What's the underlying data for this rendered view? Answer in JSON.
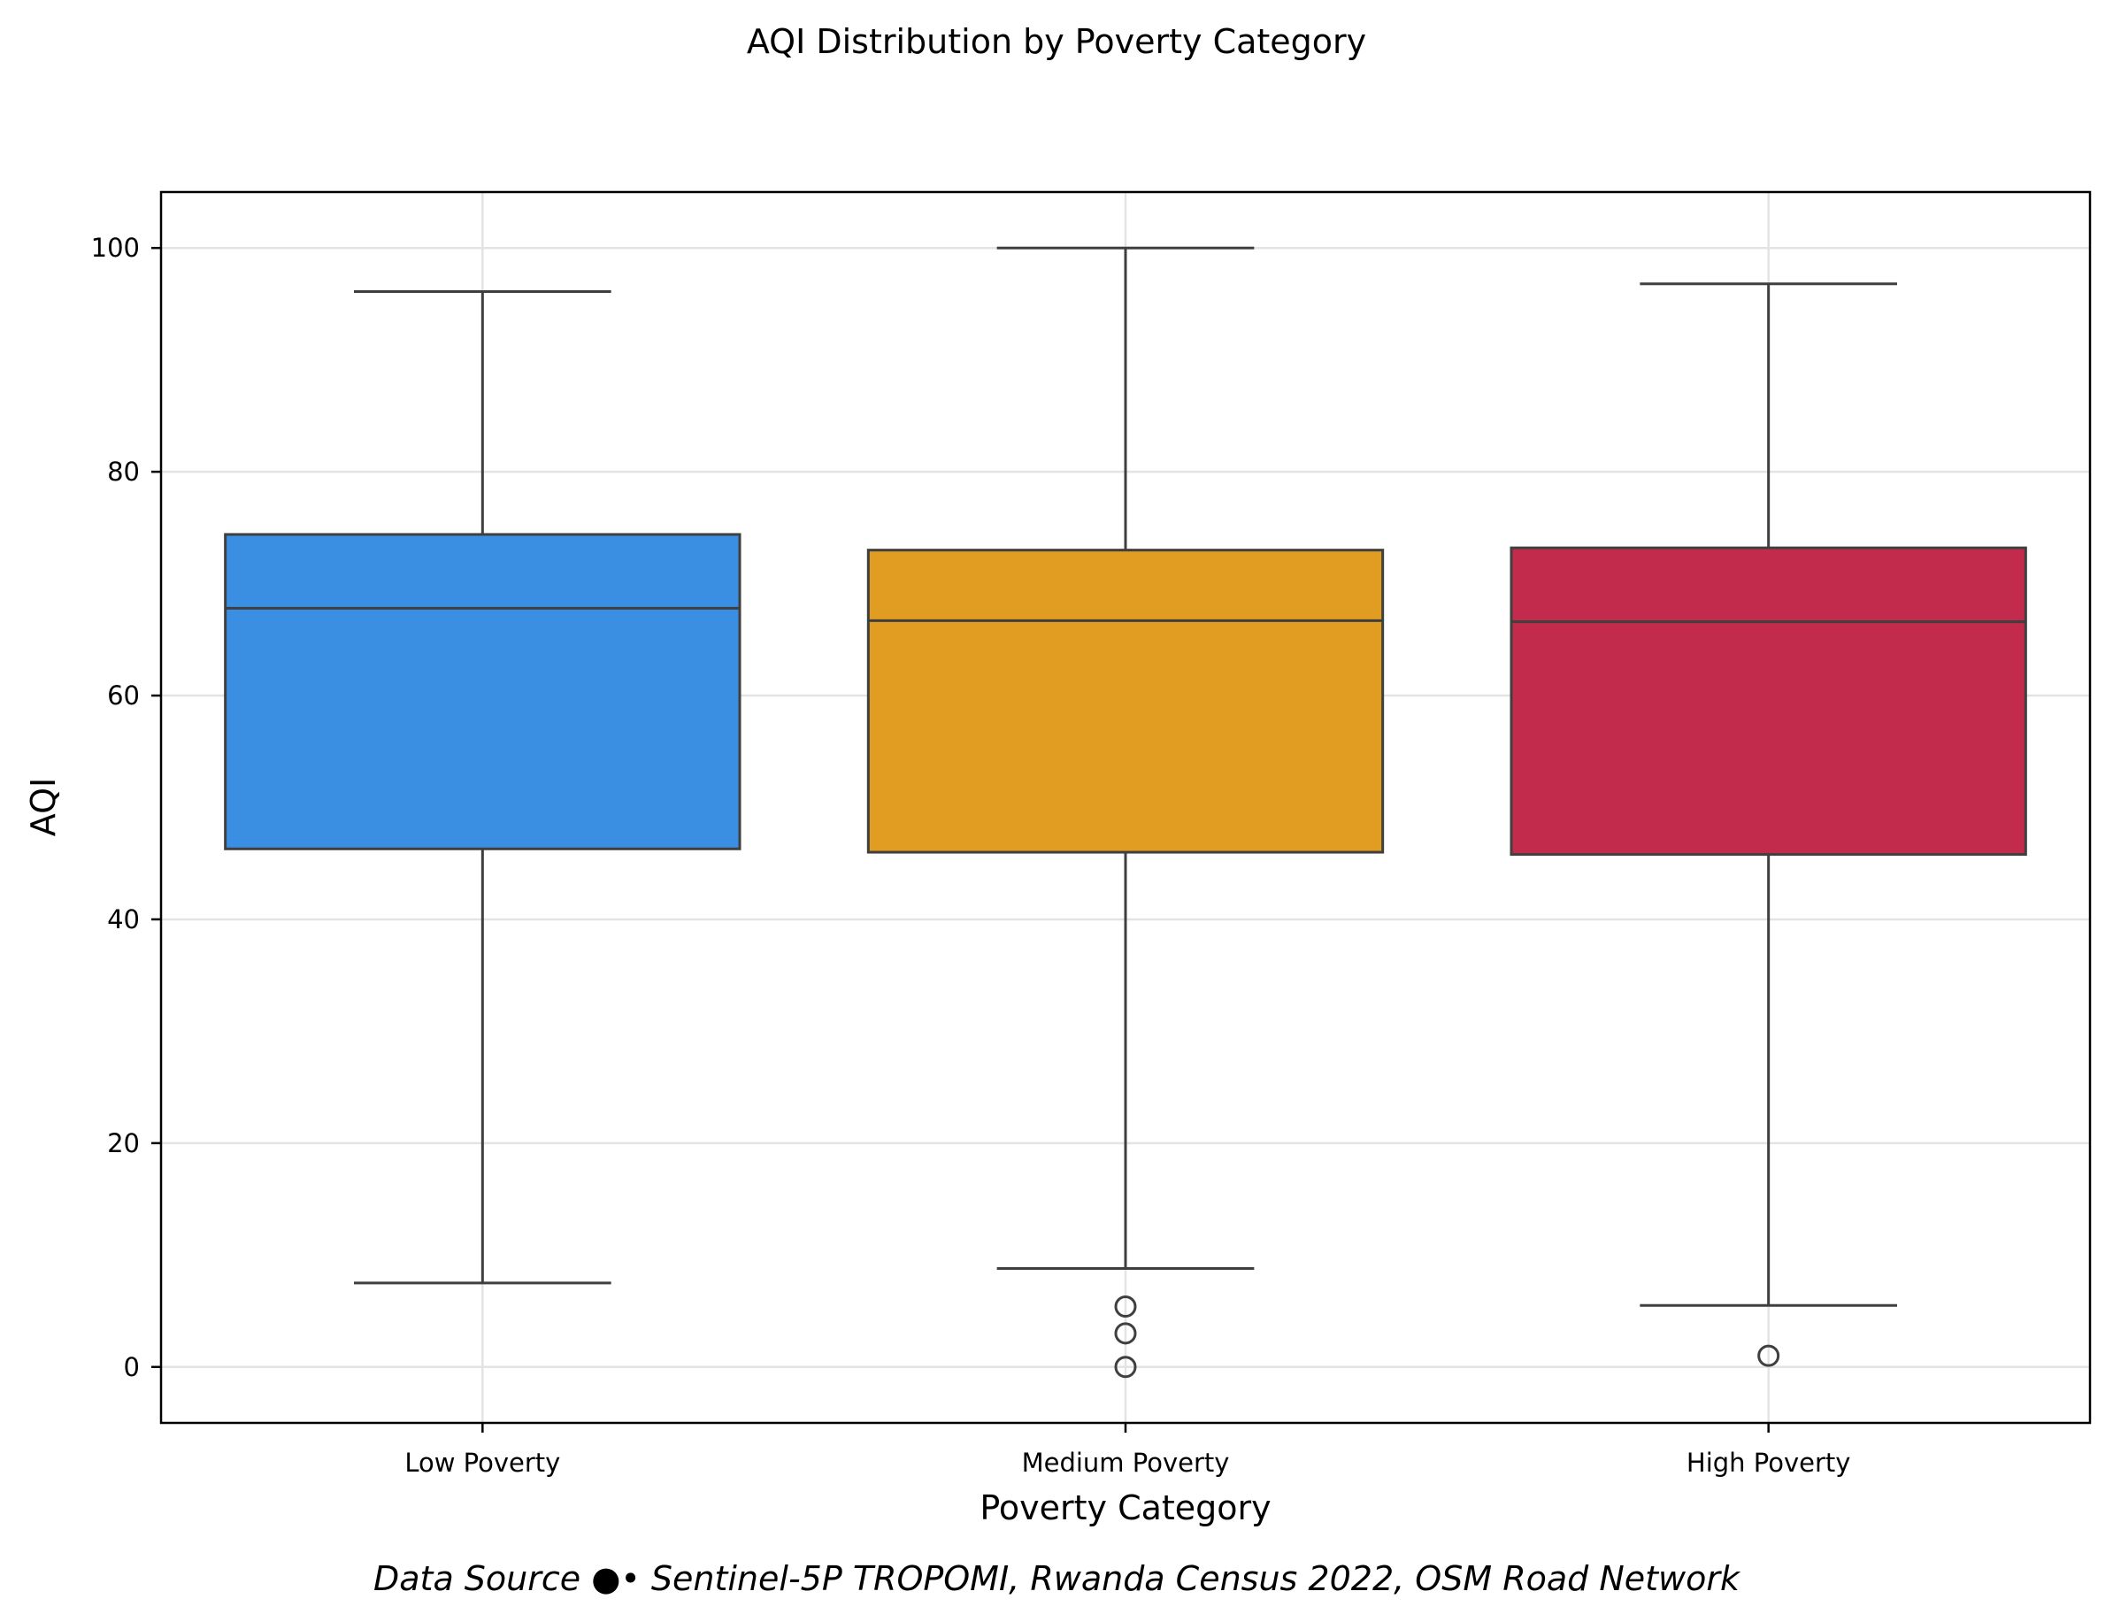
{
  "chart_data": {
    "type": "box",
    "title": "AQI Distribution by Poverty Category",
    "xlabel": "Poverty Category",
    "ylabel": "AQI",
    "ylim": [
      -5,
      105
    ],
    "yticks": [
      0,
      20,
      40,
      60,
      80,
      100
    ],
    "grid": true,
    "categories": [
      "Low Poverty",
      "Medium Poverty",
      "High Poverty"
    ],
    "boxes": [
      {
        "category": "Low Poverty",
        "whisker_low": 7.5,
        "q1": 46.3,
        "median": 67.8,
        "q3": 74.4,
        "whisker_high": 96.1,
        "outliers": [],
        "color": "#3b8fe2"
      },
      {
        "category": "Medium Poverty",
        "whisker_low": 8.8,
        "q1": 46.0,
        "median": 66.7,
        "q3": 73.0,
        "whisker_high": 100.0,
        "outliers": [
          5.4,
          3.0,
          0.0
        ],
        "color": "#e09d22"
      },
      {
        "category": "High Poverty",
        "whisker_low": 5.5,
        "q1": 45.8,
        "median": 66.6,
        "q3": 73.2,
        "whisker_high": 96.8,
        "outliers": [
          1.0
        ],
        "color": "#c32b4c"
      }
    ]
  },
  "footer": {
    "source": "Data Source ●• Sentinel-5P TROPOMI, Rwanda Census 2022, OSM Road Network"
  }
}
